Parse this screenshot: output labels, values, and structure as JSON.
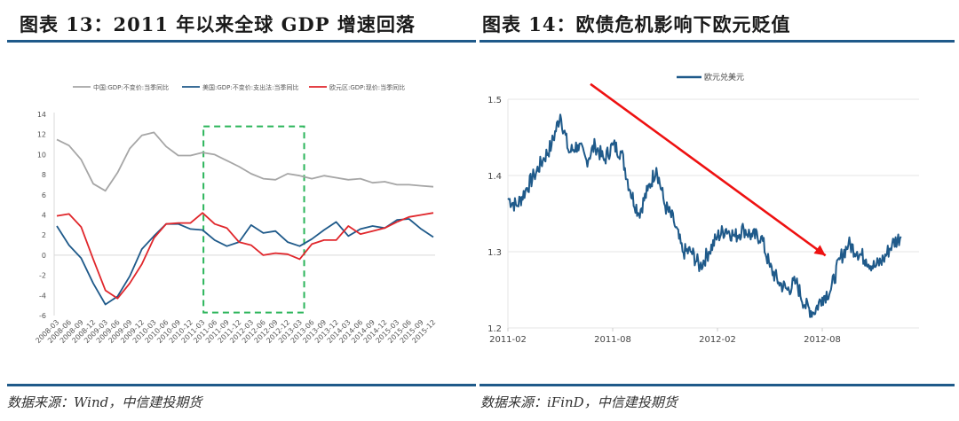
{
  "left_panel": {
    "title": "图表 13：2011 年以来全球 GDP 增速回落",
    "source": "数据来源：Wind，中信建投期货"
  },
  "right_panel": {
    "title": "图表 14：欧债危机影响下欧元贬值",
    "source": "数据来源：iFinD，中信建投期货"
  },
  "colors": {
    "china": "#a6a6a6",
    "us": "#1f5a8a",
    "euro": "#e0262b",
    "highlight_box": "#2bb55a",
    "arrow": "#ee1111",
    "rule": "#1f5a8a"
  },
  "chart_data": [
    {
      "type": "line",
      "title": "2011年以来全球GDP增速回落",
      "xlabel": "",
      "ylabel": "",
      "ylim": [
        -6,
        14
      ],
      "yticks": [
        14,
        12,
        10,
        8,
        6,
        4,
        2,
        0,
        -2,
        -4,
        -6
      ],
      "grid": false,
      "legend_position": "top",
      "categories": [
        "2008-03",
        "2008-06",
        "2008-09",
        "2008-12",
        "2009-03",
        "2009-06",
        "2009-09",
        "2009-12",
        "2010-03",
        "2010-06",
        "2010-09",
        "2010-12",
        "2011-03",
        "2011-06",
        "2011-09",
        "2011-12",
        "2012-03",
        "2012-06",
        "2012-09",
        "2012-12",
        "2013-03",
        "2013-06",
        "2013-09",
        "2013-12",
        "2014-03",
        "2014-06",
        "2014-09",
        "2014-12",
        "2015-03",
        "2015-06",
        "2015-09",
        "2015-12"
      ],
      "series": [
        {
          "name": "中国:GDP:不变价:当季同比",
          "color_key": "china",
          "values": [
            11.5,
            10.9,
            9.5,
            7.1,
            6.4,
            8.2,
            10.6,
            11.9,
            12.2,
            10.8,
            9.9,
            9.9,
            10.2,
            10.0,
            9.4,
            8.8,
            8.1,
            7.6,
            7.5,
            8.1,
            7.9,
            7.6,
            7.9,
            7.7,
            7.5,
            7.6,
            7.2,
            7.3,
            7.0,
            7.0,
            6.9,
            6.8
          ]
        },
        {
          "name": "美国:GDP:不变价:支出法:当季同比",
          "color_key": "us",
          "values": [
            2.9,
            1.0,
            -0.3,
            -2.8,
            -4.9,
            -4.1,
            -2.1,
            0.6,
            1.9,
            3.1,
            3.1,
            2.6,
            2.5,
            1.5,
            0.9,
            1.3,
            3.0,
            2.2,
            2.4,
            1.3,
            0.9,
            1.6,
            2.5,
            3.3,
            1.9,
            2.6,
            2.9,
            2.7,
            3.5,
            3.6,
            2.6,
            1.8
          ]
        },
        {
          "name": "欧元区:GDP:现价:当季同比",
          "color_key": "euro",
          "values": [
            3.9,
            4.1,
            2.8,
            -0.4,
            -3.5,
            -4.3,
            -2.8,
            -0.9,
            1.7,
            3.1,
            3.2,
            3.2,
            4.2,
            3.1,
            2.7,
            1.3,
            1.0,
            0.0,
            0.2,
            0.1,
            -0.4,
            1.1,
            1.5,
            1.5,
            2.9,
            2.1,
            2.4,
            2.7,
            3.3,
            3.8,
            4.0,
            4.2
          ]
        }
      ],
      "annotations": [
        {
          "type": "dashed-box",
          "from": "2011-03",
          "to": "2013-03",
          "y_range": [
            -5.7,
            12.8
          ]
        }
      ]
    },
    {
      "type": "line",
      "title": "欧债危机影响下欧元贬值",
      "xlabel": "",
      "ylabel": "",
      "ylim": [
        1.2,
        1.5
      ],
      "yticks": [
        1.5,
        1.4,
        1.3,
        1.2
      ],
      "xticks": [
        "2011-02",
        "2011-08",
        "2012-02",
        "2012-08"
      ],
      "grid": true,
      "legend_position": "top",
      "series": [
        {
          "name": "欧元兑美元",
          "color_key": "us",
          "x": [
            "2011-02",
            "2011-02-15",
            "2011-03",
            "2011-03-15",
            "2011-04",
            "2011-04-15",
            "2011-05",
            "2011-05-15",
            "2011-06",
            "2011-06-15",
            "2011-07",
            "2011-07-15",
            "2011-08",
            "2011-08-15",
            "2011-09",
            "2011-09-15",
            "2011-10",
            "2011-10-15",
            "2011-11",
            "2011-11-15",
            "2011-12",
            "2011-12-15",
            "2012-01",
            "2012-01-15",
            "2012-02",
            "2012-02-15",
            "2012-03",
            "2012-03-15",
            "2012-04",
            "2012-04-15",
            "2012-05",
            "2012-05-15",
            "2012-06",
            "2012-06-15",
            "2012-07",
            "2012-07-15",
            "2012-08",
            "2012-08-15",
            "2012-09",
            "2012-09-15",
            "2012-10",
            "2012-10-15",
            "2012-11",
            "2012-11-15",
            "2012-12",
            "2012-12-15"
          ],
          "values": [
            1.37,
            1.36,
            1.38,
            1.4,
            1.42,
            1.44,
            1.48,
            1.43,
            1.44,
            1.42,
            1.44,
            1.42,
            1.44,
            1.43,
            1.38,
            1.35,
            1.38,
            1.41,
            1.36,
            1.34,
            1.3,
            1.3,
            1.28,
            1.3,
            1.32,
            1.33,
            1.32,
            1.33,
            1.32,
            1.32,
            1.28,
            1.26,
            1.25,
            1.26,
            1.23,
            1.22,
            1.24,
            1.25,
            1.29,
            1.31,
            1.3,
            1.29,
            1.28,
            1.29,
            1.31,
            1.32
          ]
        }
      ],
      "annotations": [
        {
          "type": "arrow",
          "direction": "down-right",
          "from": [
            "2011-08",
            1.52
          ],
          "to": [
            "2012-09",
            1.295
          ]
        }
      ]
    }
  ]
}
